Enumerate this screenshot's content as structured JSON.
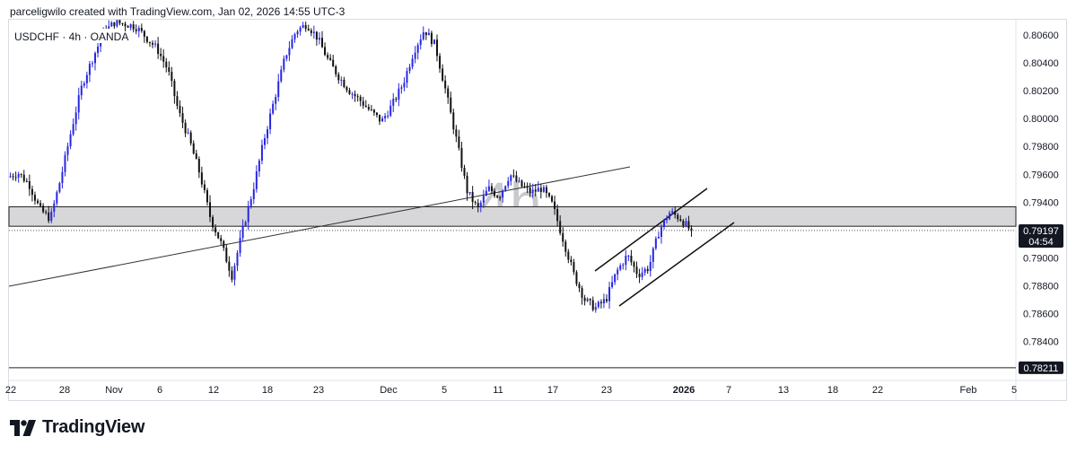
{
  "header": {
    "text": "parceligwilo created with TradingView.com, Jan 02, 2026 14:55 UTC-3"
  },
  "brand": {
    "name": "TradingView",
    "logo_icon": "tradingview-logo-icon"
  },
  "colors": {
    "up": "#2727e0",
    "down": "#111111",
    "zone": "#d7d7d9",
    "line": "#333333"
  },
  "chart_data": {
    "type": "candlestick",
    "symbol_label": "USDCHF · 4h · OANDA",
    "watermark": "4h",
    "ylim": [
      0.7812,
      0.8071
    ],
    "y_ticks": [
      "0.80600",
      "0.80400",
      "0.80200",
      "0.80000",
      "0.79800",
      "0.79600",
      "0.79400",
      "0.79000",
      "0.78800",
      "0.78600",
      "0.78400"
    ],
    "x_ticks": [
      "22",
      "28",
      "Nov",
      "6",
      "12",
      "18",
      "23",
      "Dec",
      "5",
      "11",
      "17",
      "23",
      "2026",
      "7",
      "13",
      "18",
      "22",
      "Feb",
      "5"
    ],
    "bold_x_tick": "2026",
    "last_price": "0.79197",
    "countdown": "04:54",
    "level_label": "0.78211",
    "level_price": 0.78211,
    "zone": [
      0.79227,
      0.79367
    ],
    "close_price": 0.79197,
    "price_path": [
      0.7958,
      0.7961,
      0.7953,
      0.7935,
      0.7928,
      0.7958,
      0.7993,
      0.8025,
      0.8044,
      0.8062,
      0.8069,
      0.8068,
      0.8066,
      0.8058,
      0.805,
      0.8035,
      0.8005,
      0.7985,
      0.796,
      0.7928,
      0.791,
      0.7887,
      0.792,
      0.795,
      0.7985,
      0.8015,
      0.8045,
      0.8063,
      0.8068,
      0.8058,
      0.8042,
      0.803,
      0.802,
      0.8013,
      0.8005,
      0.7998,
      0.801,
      0.8025,
      0.8048,
      0.8064,
      0.8053,
      0.802,
      0.7985,
      0.7948,
      0.7935,
      0.795,
      0.7944,
      0.796,
      0.7952,
      0.7947,
      0.795,
      0.7938,
      0.7913,
      0.7888,
      0.787,
      0.7864,
      0.787,
      0.789,
      0.7902,
      0.7888,
      0.7893,
      0.792,
      0.7933,
      0.7928,
      0.7919
    ],
    "price_path_dates": [
      "Oct 22",
      "Oct 28",
      "Nov 6",
      "Nov 12",
      "Nov 18",
      "Nov 23",
      "Dec 5",
      "Dec 11",
      "Dec 17",
      "Dec 23",
      "Jan 2"
    ]
  }
}
